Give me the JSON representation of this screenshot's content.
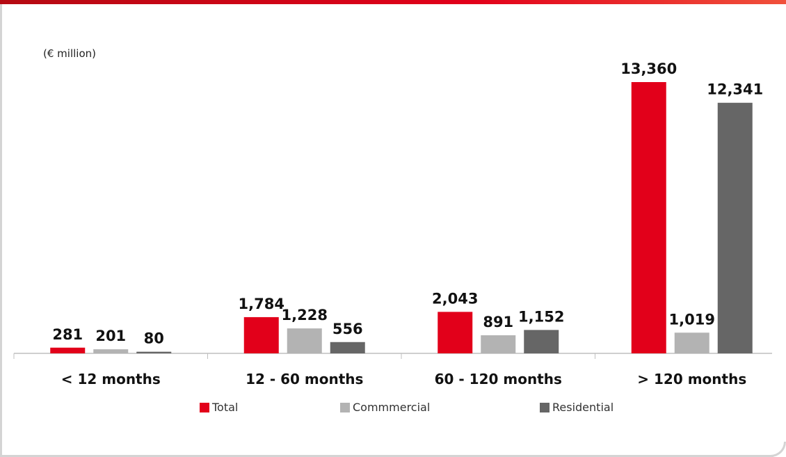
{
  "unit_label": "(€ million)",
  "colors": {
    "total": "#e2001a",
    "commercial": "#b3b3b3",
    "residential": "#666666",
    "axis": "#bfbfbf"
  },
  "chart_data": {
    "type": "bar",
    "categories": [
      "< 12 months",
      "12 - 60 months",
      "60 - 120 months",
      "> 120 months"
    ],
    "series": [
      {
        "name": "Total",
        "values": [
          281,
          1784,
          2043,
          13360
        ],
        "labels": [
          "281",
          "1,784",
          "2,043",
          "13,360"
        ]
      },
      {
        "name": "Commmercial",
        "values": [
          201,
          1228,
          891,
          1019
        ],
        "labels": [
          "201",
          "1,228",
          "891",
          "1,019"
        ]
      },
      {
        "name": "Residential",
        "values": [
          80,
          556,
          1152,
          12341
        ],
        "labels": [
          "80",
          "556",
          "1,152",
          "12,341"
        ]
      }
    ],
    "ylim": [
      0,
      15000
    ],
    "grid": false,
    "legend_position": "bottom"
  },
  "legend": {
    "total": "Total",
    "commercial": "Commmercial",
    "residential": "Residential"
  }
}
